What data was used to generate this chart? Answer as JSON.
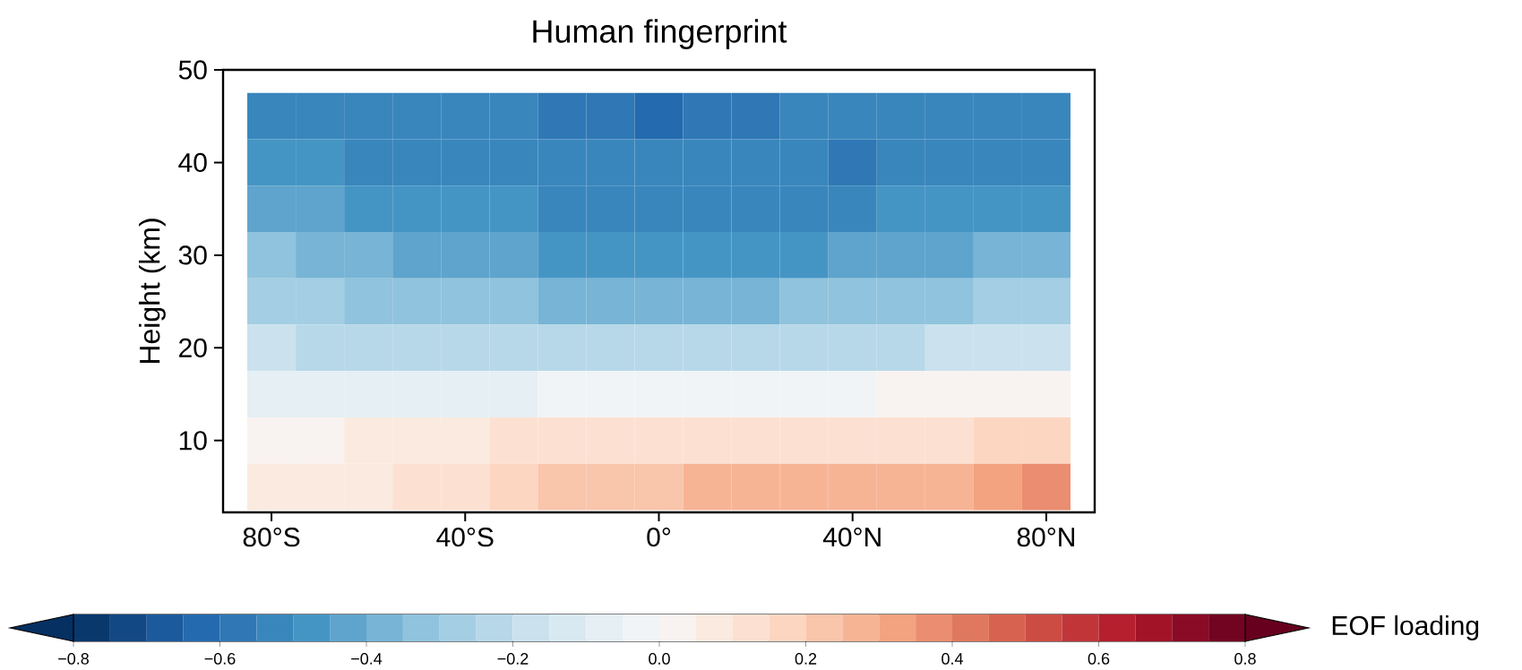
{
  "chart_data": {
    "type": "heatmap",
    "title": "Human fingerprint",
    "ylabel": "Height (km)",
    "clabel": "EOF loading",
    "categories": [
      "80°S",
      null,
      null,
      null,
      "40°S",
      null,
      null,
      null,
      "0°",
      null,
      null,
      null,
      "40°N",
      null,
      null,
      null,
      "80°N"
    ],
    "y_categories": [
      "50",
      null,
      "40",
      null,
      "30",
      null,
      "20",
      null,
      "10",
      null
    ],
    "cells": [
      [
        null,
        null,
        null,
        null,
        null,
        null,
        null,
        null,
        null,
        null,
        null,
        null,
        null,
        null,
        null,
        null,
        null
      ],
      [
        -0.52,
        -0.55,
        -0.55,
        -0.55,
        -0.55,
        -0.55,
        -0.57,
        -0.6,
        -0.62,
        -0.6,
        -0.57,
        -0.55,
        -0.55,
        -0.55,
        -0.55,
        -0.55,
        -0.55
      ],
      [
        -0.48,
        -0.5,
        -0.52,
        -0.52,
        -0.52,
        -0.55,
        -0.55,
        -0.55,
        -0.55,
        -0.55,
        -0.55,
        -0.55,
        -0.57,
        -0.55,
        -0.55,
        -0.52,
        -0.52
      ],
      [
        -0.42,
        -0.45,
        -0.47,
        -0.47,
        -0.5,
        -0.5,
        -0.52,
        -0.52,
        -0.52,
        -0.52,
        -0.52,
        -0.52,
        -0.52,
        -0.5,
        -0.48,
        -0.48,
        -0.47
      ],
      [
        -0.35,
        -0.38,
        -0.4,
        -0.42,
        -0.42,
        -0.45,
        -0.47,
        -0.47,
        -0.47,
        -0.47,
        -0.47,
        -0.47,
        -0.45,
        -0.43,
        -0.42,
        -0.4,
        -0.4
      ],
      [
        -0.28,
        -0.3,
        -0.32,
        -0.32,
        -0.33,
        -0.35,
        -0.37,
        -0.37,
        -0.37,
        -0.37,
        -0.37,
        -0.35,
        -0.35,
        -0.33,
        -0.32,
        -0.3,
        -0.3
      ],
      [
        -0.2,
        -0.22,
        -0.23,
        -0.23,
        -0.23,
        -0.25,
        -0.25,
        -0.25,
        -0.25,
        -0.25,
        -0.25,
        -0.25,
        -0.23,
        -0.22,
        -0.2,
        -0.2,
        -0.18
      ],
      [
        -0.1,
        -0.1,
        -0.08,
        -0.08,
        -0.08,
        -0.07,
        -0.05,
        -0.05,
        -0.05,
        -0.05,
        -0.05,
        -0.03,
        -0.02,
        0.0,
        0.02,
        0.02,
        0.03
      ],
      [
        0.03,
        0.03,
        0.05,
        0.07,
        0.08,
        0.1,
        0.12,
        0.12,
        0.12,
        0.13,
        0.13,
        0.13,
        0.13,
        0.13,
        0.13,
        0.15,
        0.15
      ],
      [
        0.07,
        0.07,
        0.08,
        0.1,
        0.12,
        0.15,
        0.2,
        0.22,
        0.23,
        0.25,
        0.25,
        0.25,
        0.27,
        0.27,
        0.28,
        0.3,
        0.35
      ]
    ],
    "clim": [
      -0.8,
      0.8
    ],
    "cticks": [
      {
        "value": -0.8,
        "label": "−0.8"
      },
      {
        "value": -0.6,
        "label": "−0.6"
      },
      {
        "value": -0.4,
        "label": "−0.4"
      },
      {
        "value": -0.2,
        "label": "−0.2"
      },
      {
        "value": 0.0,
        "label": "0.0"
      },
      {
        "value": 0.2,
        "label": "0.2"
      },
      {
        "value": 0.4,
        "label": "0.4"
      },
      {
        "value": 0.6,
        "label": "0.6"
      },
      {
        "value": 0.8,
        "label": "0.8"
      }
    ]
  }
}
